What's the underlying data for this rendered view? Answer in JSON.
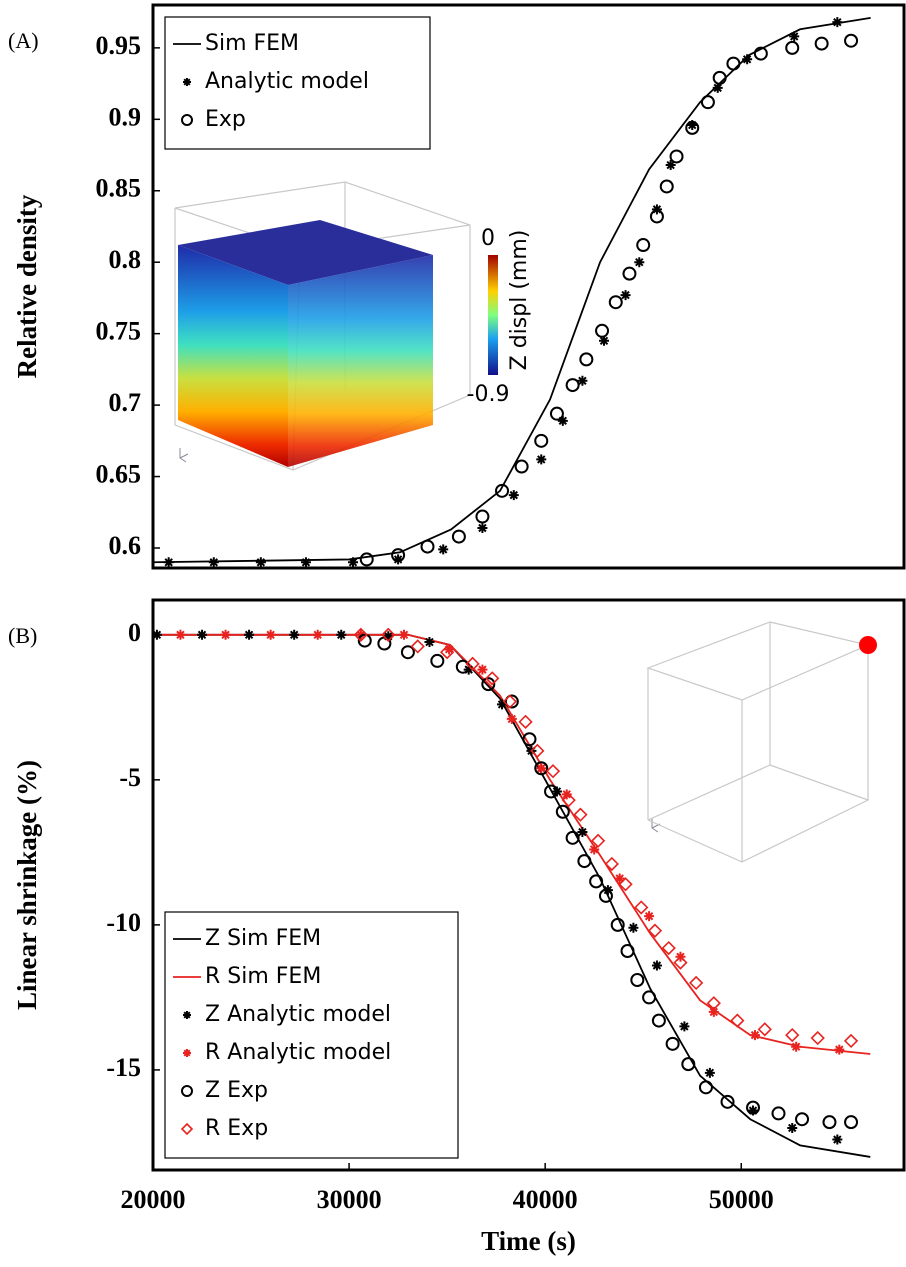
{
  "chart_data": [
    {
      "type": "line",
      "panel_label": "(A)",
      "ylabel": "Relative density",
      "xlim": [
        20000,
        58300
      ],
      "ylim": [
        0.586,
        0.98
      ],
      "yticks": [
        0.6,
        0.65,
        0.7,
        0.75,
        0.8,
        0.85,
        0.9,
        0.95
      ],
      "legend": "upper left",
      "inset": {
        "colorbar_label": "Z displ (mm)",
        "colorbar_ticks": [
          0,
          -0.9
        ]
      },
      "series": [
        {
          "name": "Sim FEM",
          "color": "#000000",
          "marker": "none",
          "x": [
            20000,
            30000,
            32600,
            35200,
            37700,
            40250,
            42800,
            45300,
            47900,
            50400,
            53000,
            56600
          ],
          "values": [
            0.59,
            0.592,
            0.597,
            0.613,
            0.64,
            0.704,
            0.8,
            0.865,
            0.912,
            0.945,
            0.963,
            0.971
          ]
        },
        {
          "name": "Analytic model",
          "color": "#000000",
          "marker": "star",
          "x": [
            20800,
            23100,
            25500,
            27800,
            30200,
            32500,
            34800,
            36800,
            38400,
            39800,
            40900,
            41900,
            43000,
            44100,
            44800,
            45700,
            46400,
            47500,
            48800,
            50300,
            52700,
            54900
          ],
          "values": [
            0.59,
            0.59,
            0.59,
            0.59,
            0.59,
            0.592,
            0.599,
            0.614,
            0.637,
            0.662,
            0.689,
            0.717,
            0.745,
            0.777,
            0.8,
            0.837,
            0.868,
            0.896,
            0.922,
            0.942,
            0.958,
            0.968
          ]
        },
        {
          "name": "Exp",
          "color": "#000000",
          "marker": "circle",
          "x": [
            30900,
            32500,
            34000,
            35600,
            36800,
            37800,
            38800,
            39800,
            40600,
            41400,
            42100,
            42900,
            43600,
            44300,
            45000,
            45700,
            46200,
            46700,
            47500,
            48300,
            48900,
            49600,
            51000,
            52600,
            54100,
            55600
          ],
          "values": [
            0.592,
            0.595,
            0.601,
            0.608,
            0.622,
            0.64,
            0.657,
            0.675,
            0.694,
            0.714,
            0.732,
            0.752,
            0.772,
            0.792,
            0.812,
            0.832,
            0.853,
            0.874,
            0.894,
            0.912,
            0.929,
            0.939,
            0.946,
            0.95,
            0.953,
            0.955
          ]
        }
      ]
    },
    {
      "type": "line",
      "panel_label": "(B)",
      "ylabel": "Linear shrinkage (%)",
      "xlabel": "Time (s)",
      "xlim": [
        20000,
        58300
      ],
      "ylim": [
        -18.45,
        1.2
      ],
      "xticks": [
        20000,
        30000,
        40000,
        50000
      ],
      "yticks": [
        0,
        -5,
        -10,
        -15
      ],
      "legend": "lower left",
      "series": [
        {
          "name": "Z Sim FEM",
          "color": "#000000",
          "marker": "none",
          "x": [
            20000,
            33000,
            35150,
            37700,
            40250,
            42800,
            45360,
            47900,
            50460,
            53000,
            56580
          ],
          "values": [
            0,
            0,
            -0.35,
            -2.2,
            -5.3,
            -8.4,
            -12.2,
            -15.2,
            -16.7,
            -17.6,
            -18.0
          ]
        },
        {
          "name": "R Sim FEM",
          "color": "#e8231f",
          "marker": "none",
          "x": [
            20000,
            33000,
            35150,
            37700,
            40250,
            42800,
            45360,
            47900,
            50460,
            53000,
            56580
          ],
          "values": [
            0,
            0,
            -0.35,
            -2.1,
            -5.0,
            -7.6,
            -10.3,
            -12.6,
            -13.8,
            -14.2,
            -14.45
          ]
        },
        {
          "name": "Z Analytic model",
          "color": "#000000",
          "marker": "star",
          "x": [
            20200,
            22500,
            24900,
            27200,
            29600,
            32000,
            34100,
            36100,
            37800,
            39300,
            40600,
            41900,
            43200,
            44500,
            45700,
            47100,
            48400,
            50600,
            52600,
            54900
          ],
          "values": [
            0,
            0,
            0,
            0,
            0,
            -0.05,
            -0.25,
            -1.2,
            -2.4,
            -4.0,
            -5.4,
            -6.8,
            -8.8,
            -10.1,
            -11.4,
            -13.5,
            -15.1,
            -16.4,
            -17.0,
            -17.4
          ]
        },
        {
          "name": "R Analytic model",
          "color": "#e8231f",
          "marker": "star",
          "x": [
            21400,
            23700,
            26000,
            28400,
            30600,
            32800,
            35100,
            36800,
            38300,
            39800,
            41100,
            42500,
            43800,
            45300,
            46900,
            48600,
            50700,
            52800,
            55000
          ],
          "values": [
            0,
            0,
            0,
            0,
            0,
            0,
            -0.5,
            -1.2,
            -2.9,
            -4.6,
            -5.5,
            -7.4,
            -8.4,
            -9.7,
            -11.1,
            -13.0,
            -13.8,
            -14.2,
            -14.3
          ]
        },
        {
          "name": "Z Exp",
          "color": "#000000",
          "marker": "circle",
          "x": [
            30800,
            31800,
            33000,
            34500,
            35800,
            37100,
            38300,
            39200,
            39800,
            40300,
            40900,
            41400,
            42000,
            42600,
            43100,
            43700,
            44200,
            44700,
            45300,
            45800,
            46500,
            47300,
            48200,
            49300,
            50600,
            51900,
            53100,
            54500,
            55600
          ],
          "values": [
            -0.2,
            -0.3,
            -0.6,
            -0.9,
            -1.1,
            -1.7,
            -2.3,
            -3.6,
            -4.6,
            -5.4,
            -6.1,
            -7.0,
            -7.8,
            -8.5,
            -9.0,
            -10.0,
            -10.9,
            -11.9,
            -12.5,
            -13.3,
            -14.1,
            -14.8,
            -15.6,
            -16.1,
            -16.3,
            -16.5,
            -16.7,
            -16.8,
            -16.8
          ]
        },
        {
          "name": "R Exp",
          "color": "#e8231f",
          "marker": "diamond",
          "x": [
            30600,
            32000,
            33500,
            35000,
            36300,
            37300,
            38200,
            39000,
            39600,
            40400,
            41200,
            41800,
            42700,
            43400,
            44100,
            44900,
            45600,
            46300,
            46900,
            47700,
            48600,
            49800,
            51200,
            52600,
            53900,
            55600
          ],
          "values": [
            0,
            0,
            -0.4,
            -0.6,
            -1.0,
            -1.5,
            -2.3,
            -3.0,
            -4.0,
            -4.7,
            -5.7,
            -6.2,
            -7.1,
            -7.9,
            -8.6,
            -9.4,
            -10.2,
            -10.8,
            -11.3,
            -12.0,
            -12.7,
            -13.3,
            -13.6,
            -13.8,
            -13.9,
            -14.0
          ]
        }
      ]
    }
  ]
}
